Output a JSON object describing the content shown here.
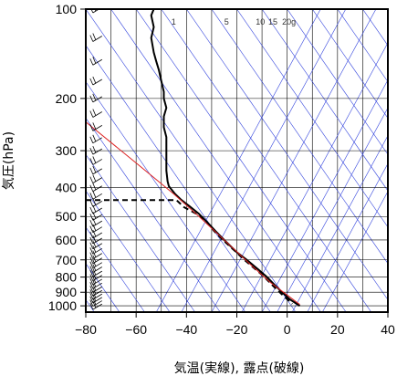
{
  "chart_data": {
    "type": "line",
    "xlabel": "気温(実線), 露点(破線)",
    "ylabel": "気圧(hPa)",
    "xlim": [
      -80,
      40
    ],
    "ylim_hpa": [
      1050,
      100
    ],
    "y_scale": "log",
    "x_ticks": [
      "−80",
      "−60",
      "−40",
      "−20",
      "0",
      "20",
      "40"
    ],
    "x_tick_values": [
      -80,
      -60,
      -40,
      -20,
      0,
      20,
      40
    ],
    "y_ticks": [
      "100",
      "200",
      "300",
      "400",
      "500",
      "600",
      "700",
      "800",
      "900",
      "1000"
    ],
    "y_tick_values": [
      100,
      200,
      300,
      400,
      500,
      600,
      700,
      800,
      900,
      1000
    ],
    "mixing_ratio_labels": [
      "1",
      "5",
      "10",
      "15",
      "20g"
    ],
    "series": [
      {
        "role": "temperature",
        "style": "solid",
        "color": "#000000",
        "points": [
          [
            -53,
            100
          ],
          [
            -54,
            105
          ],
          [
            -53,
            115
          ],
          [
            -54,
            125
          ],
          [
            -53,
            140
          ],
          [
            -52,
            150
          ],
          [
            -51,
            160
          ],
          [
            -50,
            175
          ],
          [
            -49,
            190
          ],
          [
            -49,
            200
          ],
          [
            -48,
            215
          ],
          [
            -49,
            230
          ],
          [
            -49,
            250
          ],
          [
            -48,
            270
          ],
          [
            -48,
            290
          ],
          [
            -48,
            320
          ],
          [
            -48,
            350
          ],
          [
            -47.5,
            380
          ],
          [
            -47,
            395
          ],
          [
            -46,
            405
          ],
          [
            -44.5,
            420
          ],
          [
            -42,
            440
          ],
          [
            -39,
            460
          ],
          [
            -35,
            490
          ],
          [
            -32,
            520
          ],
          [
            -28.5,
            560
          ],
          [
            -25,
            600
          ],
          [
            -20,
            660
          ],
          [
            -16,
            700
          ],
          [
            -11,
            760
          ],
          [
            -8,
            800
          ],
          [
            -5,
            850
          ],
          [
            -2,
            900
          ],
          [
            1,
            950
          ],
          [
            5,
            1000
          ]
        ]
      },
      {
        "role": "dewpoint",
        "style": "dashed",
        "color": "#000000",
        "points": [
          [
            -80,
            440
          ],
          [
            -44,
            440
          ],
          [
            -41,
            465
          ],
          [
            -36,
            490
          ],
          [
            -32,
            520
          ],
          [
            -29,
            560
          ],
          [
            -25.5,
            600
          ],
          [
            -21,
            650
          ],
          [
            -17,
            700
          ],
          [
            -12,
            760
          ],
          [
            -9,
            800
          ],
          [
            -6,
            850
          ],
          [
            -3,
            900
          ],
          [
            0,
            950
          ],
          [
            2,
            985
          ]
        ]
      },
      {
        "role": "parcel",
        "style": "solid",
        "color": "#dd2222",
        "points": [
          [
            -80,
            240
          ],
          [
            -60,
            330
          ],
          [
            -45,
            420
          ],
          [
            -35,
            500
          ],
          [
            -25,
            600
          ],
          [
            -15,
            720
          ],
          [
            -7,
            830
          ],
          [
            0,
            920
          ],
          [
            5,
            990
          ]
        ]
      }
    ],
    "wind_barb_column_x": -75
  }
}
